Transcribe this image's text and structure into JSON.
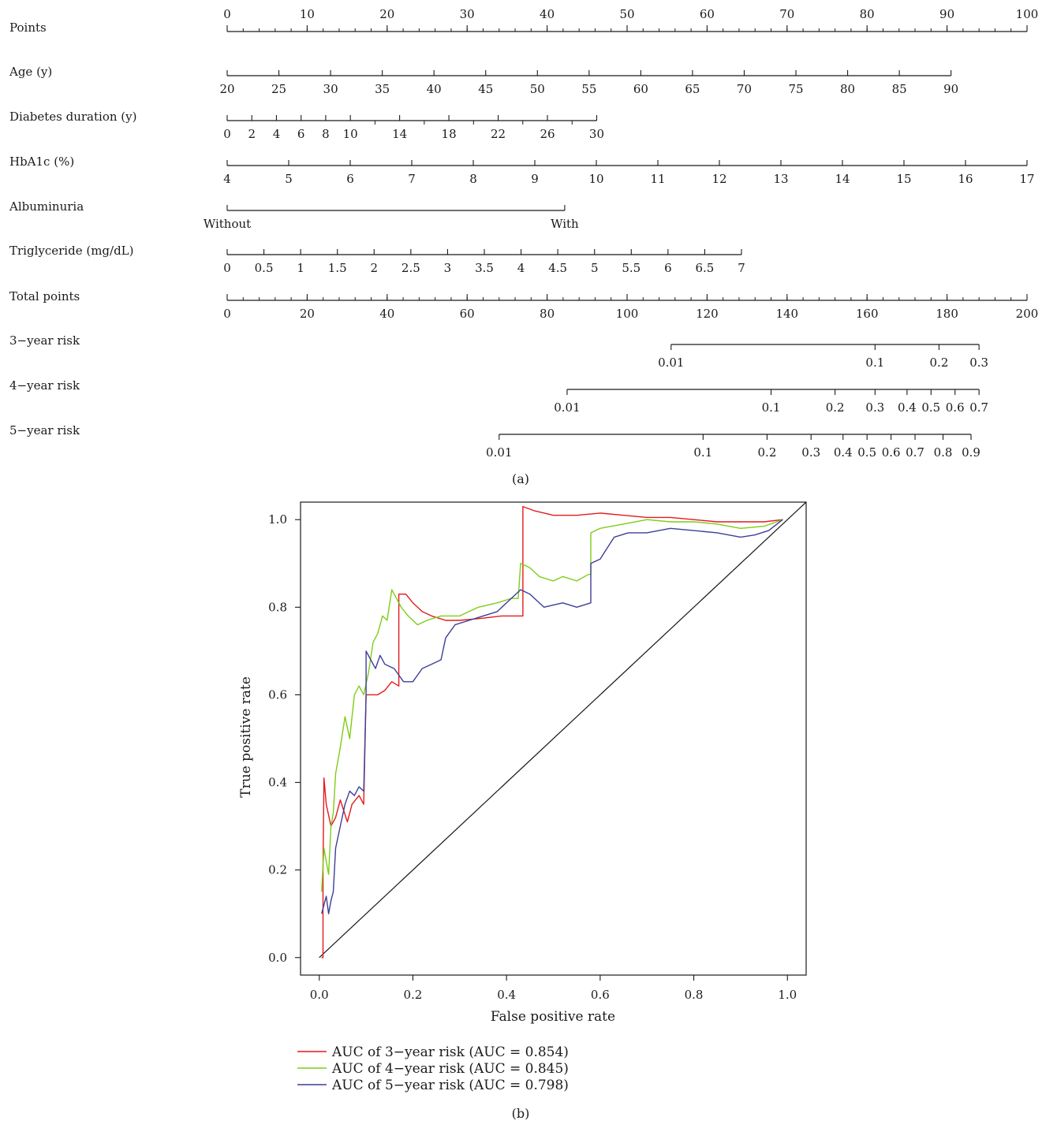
{
  "chart_data": [
    {
      "type": "nomogram",
      "panel_label": "(a)",
      "rows": [
        {
          "label": "Points",
          "ticks": [
            "0",
            "10",
            "20",
            "30",
            "40",
            "50",
            "60",
            "70",
            "80",
            "90",
            "100"
          ]
        },
        {
          "label": "Age (y)",
          "ticks": [
            "20",
            "25",
            "30",
            "35",
            "40",
            "45",
            "50",
            "55",
            "60",
            "65",
            "70",
            "75",
            "80",
            "85",
            "90"
          ]
        },
        {
          "label": "Diabetes duration (y)",
          "ticks": [
            "0",
            "2",
            "4",
            "6",
            "8",
            "10",
            "14",
            "18",
            "22",
            "26",
            "30"
          ]
        },
        {
          "label": "HbA1c (%)",
          "ticks": [
            "4",
            "5",
            "6",
            "7",
            "8",
            "9",
            "10",
            "11",
            "12",
            "13",
            "14",
            "15",
            "16",
            "17"
          ]
        },
        {
          "label": "Albuminuria",
          "ticks": [
            "Without",
            "With"
          ]
        },
        {
          "label": "Triglyceride (mg/dL)",
          "ticks": [
            "0",
            "0.5",
            "1",
            "1.5",
            "2",
            "2.5",
            "3",
            "3.5",
            "4",
            "4.5",
            "5",
            "5.5",
            "6",
            "6.5",
            "7"
          ]
        },
        {
          "label": "Total points",
          "ticks": [
            "0",
            "20",
            "40",
            "60",
            "80",
            "100",
            "120",
            "140",
            "160",
            "180",
            "200"
          ]
        },
        {
          "label": "3−year risk",
          "ticks": [
            "0.01",
            "0.1",
            "0.2",
            "0.3"
          ]
        },
        {
          "label": "4−year risk",
          "ticks": [
            "0.01",
            "0.1",
            "0.2",
            "0.3",
            "0.4",
            "0.5",
            "0.6",
            "0.7"
          ]
        },
        {
          "label": "5−year risk",
          "ticks": [
            "0.01",
            "0.1",
            "0.2",
            "0.3",
            "0.4",
            "0.5",
            "0.6",
            "0.7",
            "0.8",
            "0.9"
          ]
        }
      ],
      "row_value_points": {
        "Points": [
          [
            0,
            0
          ],
          [
            10,
            10
          ],
          [
            20,
            20
          ],
          [
            30,
            30
          ],
          [
            40,
            40
          ],
          [
            50,
            50
          ],
          [
            60,
            60
          ],
          [
            70,
            70
          ],
          [
            80,
            80
          ],
          [
            90,
            90
          ],
          [
            100,
            100
          ]
        ],
        "Age (y)": [
          [
            20,
            0
          ],
          [
            90,
            90.5
          ]
        ],
        "Diabetes duration (y)": [
          [
            0,
            0
          ],
          [
            30,
            46.2
          ]
        ],
        "HbA1c (%)": [
          [
            4,
            0
          ],
          [
            17,
            100
          ]
        ],
        "Albuminuria": [
          [
            "Without",
            0
          ],
          [
            "With",
            42.2
          ]
        ],
        "Triglyceride (mg/dL)": [
          [
            0,
            0
          ],
          [
            7,
            64.3
          ]
        ],
        "Total points": [
          [
            0,
            0
          ],
          [
            200,
            200
          ]
        ],
        "3−year risk": [
          [
            0.01,
            111
          ],
          [
            0.1,
            162
          ],
          [
            0.2,
            178
          ],
          [
            0.3,
            188
          ]
        ],
        "4−year risk": [
          [
            0.01,
            85
          ],
          [
            0.1,
            136
          ],
          [
            0.2,
            152
          ],
          [
            0.3,
            162
          ],
          [
            0.4,
            170
          ],
          [
            0.5,
            176
          ],
          [
            0.6,
            182
          ],
          [
            0.7,
            188
          ]
        ],
        "5−year risk": [
          [
            0.01,
            68
          ],
          [
            0.1,
            119
          ],
          [
            0.2,
            135
          ],
          [
            0.3,
            146
          ],
          [
            0.4,
            154
          ],
          [
            0.5,
            160
          ],
          [
            0.6,
            166
          ],
          [
            0.7,
            172
          ],
          [
            0.8,
            179
          ],
          [
            0.9,
            186
          ]
        ]
      }
    },
    {
      "type": "line",
      "panel_label": "(b)",
      "xlabel": "False positive rate",
      "ylabel": "True positive rate",
      "xlim": [
        -0.04,
        1.04
      ],
      "ylim": [
        -0.04,
        1.04
      ],
      "xticks": [
        "0.0",
        "0.2",
        "0.4",
        "0.6",
        "0.8",
        "1.0"
      ],
      "yticks": [
        "0.0",
        "0.2",
        "0.4",
        "0.6",
        "0.8",
        "1.0"
      ],
      "reference_line": [
        [
          0,
          0
        ],
        [
          1,
          1
        ]
      ],
      "legend_position": "bottom-left",
      "series": [
        {
          "name": "AUC of 3−year risk (AUC = 0.854)",
          "color": "#e41a1c",
          "points": [
            [
              0.005,
              0.0
            ],
            [
              0.008,
              0.0
            ],
            [
              0.008,
              0.2
            ],
            [
              0.01,
              0.41
            ],
            [
              0.015,
              0.35
            ],
            [
              0.025,
              0.3
            ],
            [
              0.035,
              0.32
            ],
            [
              0.045,
              0.36
            ],
            [
              0.06,
              0.31
            ],
            [
              0.07,
              0.35
            ],
            [
              0.085,
              0.37
            ],
            [
              0.095,
              0.35
            ],
            [
              0.1,
              0.6
            ],
            [
              0.11,
              0.6
            ],
            [
              0.125,
              0.6
            ],
            [
              0.14,
              0.61
            ],
            [
              0.155,
              0.63
            ],
            [
              0.17,
              0.62
            ],
            [
              0.17,
              0.83
            ],
            [
              0.185,
              0.83
            ],
            [
              0.2,
              0.81
            ],
            [
              0.22,
              0.79
            ],
            [
              0.24,
              0.78
            ],
            [
              0.27,
              0.77
            ],
            [
              0.3,
              0.77
            ],
            [
              0.35,
              0.775
            ],
            [
              0.39,
              0.78
            ],
            [
              0.43,
              0.78
            ],
            [
              0.435,
              0.78
            ],
            [
              0.435,
              1.03
            ],
            [
              0.46,
              1.02
            ],
            [
              0.5,
              1.01
            ],
            [
              0.55,
              1.01
            ],
            [
              0.6,
              1.015
            ],
            [
              0.65,
              1.01
            ],
            [
              0.7,
              1.005
            ],
            [
              0.75,
              1.005
            ],
            [
              0.8,
              1.0
            ],
            [
              0.85,
              0.995
            ],
            [
              0.9,
              0.995
            ],
            [
              0.95,
              0.995
            ],
            [
              0.99,
              1.0
            ]
          ]
        },
        {
          "name": "AUC of 4−year risk (AUC = 0.845)",
          "color": "#7fcc19",
          "points": [
            [
              0.005,
              0.15
            ],
            [
              0.01,
              0.25
            ],
            [
              0.015,
              0.22
            ],
            [
              0.02,
              0.19
            ],
            [
              0.025,
              0.3
            ],
            [
              0.03,
              0.33
            ],
            [
              0.035,
              0.42
            ],
            [
              0.045,
              0.48
            ],
            [
              0.055,
              0.55
            ],
            [
              0.065,
              0.5
            ],
            [
              0.075,
              0.6
            ],
            [
              0.085,
              0.62
            ],
            [
              0.095,
              0.6
            ],
            [
              0.105,
              0.65
            ],
            [
              0.115,
              0.72
            ],
            [
              0.125,
              0.74
            ],
            [
              0.135,
              0.78
            ],
            [
              0.145,
              0.77
            ],
            [
              0.155,
              0.84
            ],
            [
              0.165,
              0.82
            ],
            [
              0.175,
              0.8
            ],
            [
              0.19,
              0.78
            ],
            [
              0.21,
              0.76
            ],
            [
              0.23,
              0.77
            ],
            [
              0.26,
              0.78
            ],
            [
              0.3,
              0.78
            ],
            [
              0.34,
              0.8
            ],
            [
              0.38,
              0.81
            ],
            [
              0.41,
              0.82
            ],
            [
              0.425,
              0.82
            ],
            [
              0.43,
              0.9
            ],
            [
              0.45,
              0.89
            ],
            [
              0.47,
              0.87
            ],
            [
              0.5,
              0.86
            ],
            [
              0.52,
              0.87
            ],
            [
              0.55,
              0.86
            ],
            [
              0.575,
              0.875
            ],
            [
              0.58,
              0.875
            ],
            [
              0.58,
              0.97
            ],
            [
              0.6,
              0.98
            ],
            [
              0.65,
              0.99
            ],
            [
              0.7,
              1.0
            ],
            [
              0.75,
              0.995
            ],
            [
              0.8,
              0.995
            ],
            [
              0.85,
              0.99
            ],
            [
              0.9,
              0.98
            ],
            [
              0.95,
              0.985
            ],
            [
              0.99,
              1.0
            ]
          ]
        },
        {
          "name": "AUC of 5−year risk (AUC = 0.798)",
          "color": "#3d3f99",
          "points": [
            [
              0.005,
              0.1
            ],
            [
              0.01,
              0.12
            ],
            [
              0.015,
              0.14
            ],
            [
              0.02,
              0.1
            ],
            [
              0.025,
              0.13
            ],
            [
              0.03,
              0.15
            ],
            [
              0.035,
              0.25
            ],
            [
              0.045,
              0.3
            ],
            [
              0.055,
              0.35
            ],
            [
              0.065,
              0.38
            ],
            [
              0.075,
              0.37
            ],
            [
              0.085,
              0.39
            ],
            [
              0.095,
              0.38
            ],
            [
              0.1,
              0.6
            ],
            [
              0.1,
              0.7
            ],
            [
              0.11,
              0.68
            ],
            [
              0.12,
              0.66
            ],
            [
              0.13,
              0.69
            ],
            [
              0.14,
              0.67
            ],
            [
              0.16,
              0.66
            ],
            [
              0.18,
              0.63
            ],
            [
              0.2,
              0.63
            ],
            [
              0.22,
              0.66
            ],
            [
              0.24,
              0.67
            ],
            [
              0.26,
              0.68
            ],
            [
              0.27,
              0.73
            ],
            [
              0.29,
              0.76
            ],
            [
              0.32,
              0.77
            ],
            [
              0.35,
              0.78
            ],
            [
              0.38,
              0.79
            ],
            [
              0.41,
              0.82
            ],
            [
              0.43,
              0.84
            ],
            [
              0.45,
              0.83
            ],
            [
              0.48,
              0.8
            ],
            [
              0.52,
              0.81
            ],
            [
              0.55,
              0.8
            ],
            [
              0.58,
              0.81
            ],
            [
              0.58,
              0.9
            ],
            [
              0.6,
              0.91
            ],
            [
              0.63,
              0.96
            ],
            [
              0.66,
              0.97
            ],
            [
              0.7,
              0.97
            ],
            [
              0.75,
              0.98
            ],
            [
              0.8,
              0.975
            ],
            [
              0.85,
              0.97
            ],
            [
              0.9,
              0.96
            ],
            [
              0.93,
              0.965
            ],
            [
              0.96,
              0.975
            ],
            [
              0.99,
              1.0
            ]
          ]
        }
      ]
    }
  ]
}
